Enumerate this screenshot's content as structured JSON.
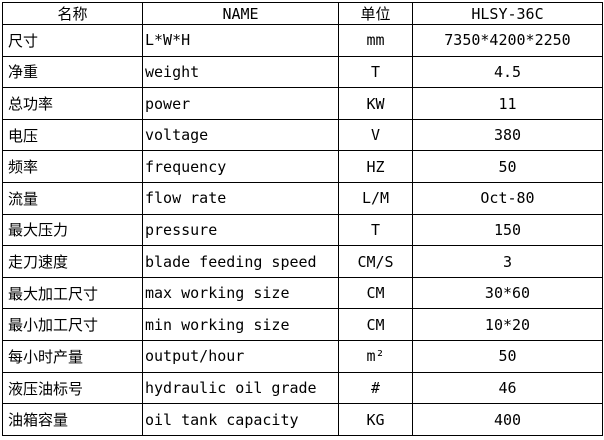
{
  "table": {
    "header": {
      "cn": "名称",
      "en": "NAME",
      "unit": "单位",
      "model": "HLSY-36C"
    },
    "rows": [
      {
        "cn": "尺寸",
        "en": "L*W*H",
        "unit": "mm",
        "value": "7350*4200*2250"
      },
      {
        "cn": "净重",
        "en": "weight",
        "unit": "T",
        "value": "4.5"
      },
      {
        "cn": "总功率",
        "en": "power",
        "unit": "KW",
        "value": "11"
      },
      {
        "cn": "电压",
        "en": "voltage",
        "unit": "V",
        "value": "380"
      },
      {
        "cn": "频率",
        "en": "frequency",
        "unit": "HZ",
        "value": "50"
      },
      {
        "cn": "流量",
        "en": "flow rate",
        "unit": "L/M",
        "value": "Oct-80"
      },
      {
        "cn": "最大压力",
        "en": "pressure",
        "unit": "T",
        "value": "150"
      },
      {
        "cn": "走刀速度",
        "en": "blade feeding speed",
        "unit": "CM/S",
        "value": "3"
      },
      {
        "cn": "最大加工尺寸",
        "en": "max working size",
        "unit": "CM",
        "value": "30*60"
      },
      {
        "cn": "最小加工尺寸",
        "en": "min working size",
        "unit": "CM",
        "value": "10*20"
      },
      {
        "cn": "每小时产量",
        "en": "output/hour",
        "unit": "m²",
        "value": "50"
      },
      {
        "cn": "液压油标号",
        "en": "hydraulic oil grade",
        "unit": "#",
        "value": "46"
      },
      {
        "cn": "油箱容量",
        "en": "oil tank capacity",
        "unit": "KG",
        "value": "400"
      }
    ],
    "colors": {
      "border": "#000000",
      "background": "#ffffff",
      "text": "#000000"
    }
  }
}
